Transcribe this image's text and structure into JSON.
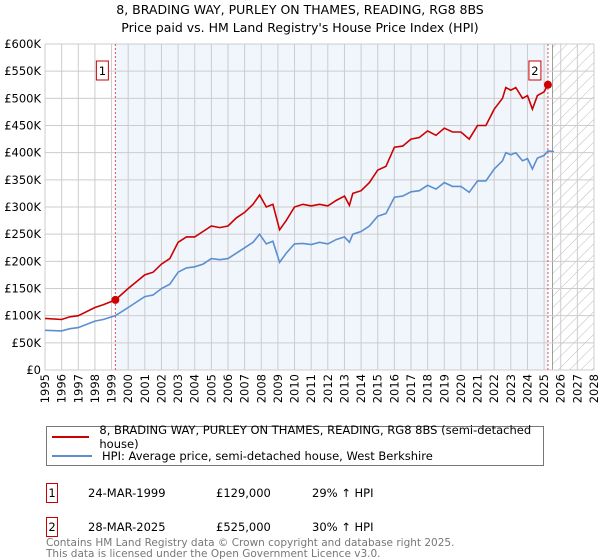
{
  "chart_data": {
    "type": "line",
    "title": "8, BRADING WAY, PURLEY ON THAMES, READING, RG8 8BS",
    "subtitle": "Price paid vs. HM Land Registry's House Price Index (HPI)",
    "xlim": [
      1995,
      2028
    ],
    "ylim": [
      0,
      600000
    ],
    "yticks": [
      0,
      50000,
      100000,
      150000,
      200000,
      250000,
      300000,
      350000,
      400000,
      450000,
      500000,
      550000,
      600000
    ],
    "ytick_labels": [
      "£0",
      "£50K",
      "£100K",
      "£150K",
      "£200K",
      "£250K",
      "£300K",
      "£350K",
      "£400K",
      "£450K",
      "£500K",
      "£550K",
      "£600K"
    ],
    "xticks": [
      "1995",
      "1996",
      "1997",
      "1998",
      "1999",
      "2000",
      "2001",
      "2002",
      "2003",
      "2004",
      "2005",
      "2006",
      "2007",
      "2008",
      "2009",
      "2010",
      "2011",
      "2012",
      "2013",
      "2014",
      "2015",
      "2016",
      "2017",
      "2018",
      "2019",
      "2020",
      "2021",
      "2022",
      "2023",
      "2024",
      "2025",
      "2026",
      "2027",
      "2028"
    ],
    "x": [
      1995,
      1996,
      1996.5,
      1997,
      1998,
      1998.5,
      1999.23,
      2000,
      2001,
      2001.5,
      2002,
      2002.5,
      2003,
      2003.5,
      2004,
      2004.5,
      2005,
      2005.5,
      2006,
      2006.5,
      2007,
      2007.5,
      2007.9,
      2008.3,
      2008.7,
      2009.1,
      2009.5,
      2010,
      2010.5,
      2011,
      2011.5,
      2012,
      2012.5,
      2013,
      2013.3,
      2013.5,
      2014,
      2014.5,
      2015,
      2015.5,
      2016,
      2016.5,
      2017,
      2017.5,
      2018,
      2018.5,
      2019,
      2019.5,
      2020,
      2020.5,
      2021,
      2021.5,
      2022,
      2022.5,
      2022.7,
      2023,
      2023.3,
      2023.7,
      2024,
      2024.3,
      2024.6,
      2025,
      2025.23,
      2025.6
    ],
    "series": [
      {
        "name": "8, BRADING WAY, PURLEY ON THAMES, READING, RG8 8BS (semi-detached house)",
        "color": "#cc0000",
        "values_k": [
          95,
          93,
          98,
          100,
          115,
          120,
          129,
          150,
          175,
          180,
          195,
          205,
          235,
          245,
          245,
          255,
          265,
          262,
          265,
          280,
          290,
          305,
          322,
          300,
          305,
          258,
          275,
          300,
          305,
          302,
          305,
          302,
          312,
          320,
          303,
          325,
          330,
          345,
          368,
          375,
          410,
          412,
          425,
          428,
          440,
          432,
          445,
          438,
          438,
          425,
          450,
          450,
          480,
          500,
          520,
          515,
          520,
          500,
          505,
          480,
          505,
          512,
          525,
          null
        ]
      },
      {
        "name": "HPI: Average price, semi-detached house, West Berkshire",
        "color": "#5b8fd0",
        "values_k": [
          73,
          72,
          76,
          78,
          90,
          93,
          100,
          115,
          135,
          138,
          150,
          158,
          180,
          188,
          190,
          195,
          205,
          203,
          205,
          215,
          225,
          235,
          250,
          232,
          237,
          198,
          215,
          232,
          233,
          231,
          235,
          232,
          240,
          245,
          235,
          250,
          255,
          265,
          283,
          288,
          318,
          320,
          328,
          330,
          340,
          333,
          345,
          338,
          338,
          327,
          348,
          348,
          370,
          385,
          400,
          396,
          400,
          385,
          389,
          370,
          390,
          395,
          403,
          402
        ]
      }
    ],
    "sales": [
      {
        "label": "1",
        "x": 1999.23,
        "price": 129000,
        "date": "24-MAR-1999",
        "price_text": "£129,000",
        "hpi": "29% ↑ HPI"
      },
      {
        "label": "2",
        "x": 2025.23,
        "price": 525000,
        "date": "28-MAR-2025",
        "price_text": "£525,000",
        "hpi": "30% ↑ HPI"
      }
    ],
    "forecast_start": 2025.5
  },
  "footer": [
    "Contains HM Land Registry data © Crown copyright and database right 2025.",
    "This data is licensed under the Open Government Licence v3.0."
  ]
}
